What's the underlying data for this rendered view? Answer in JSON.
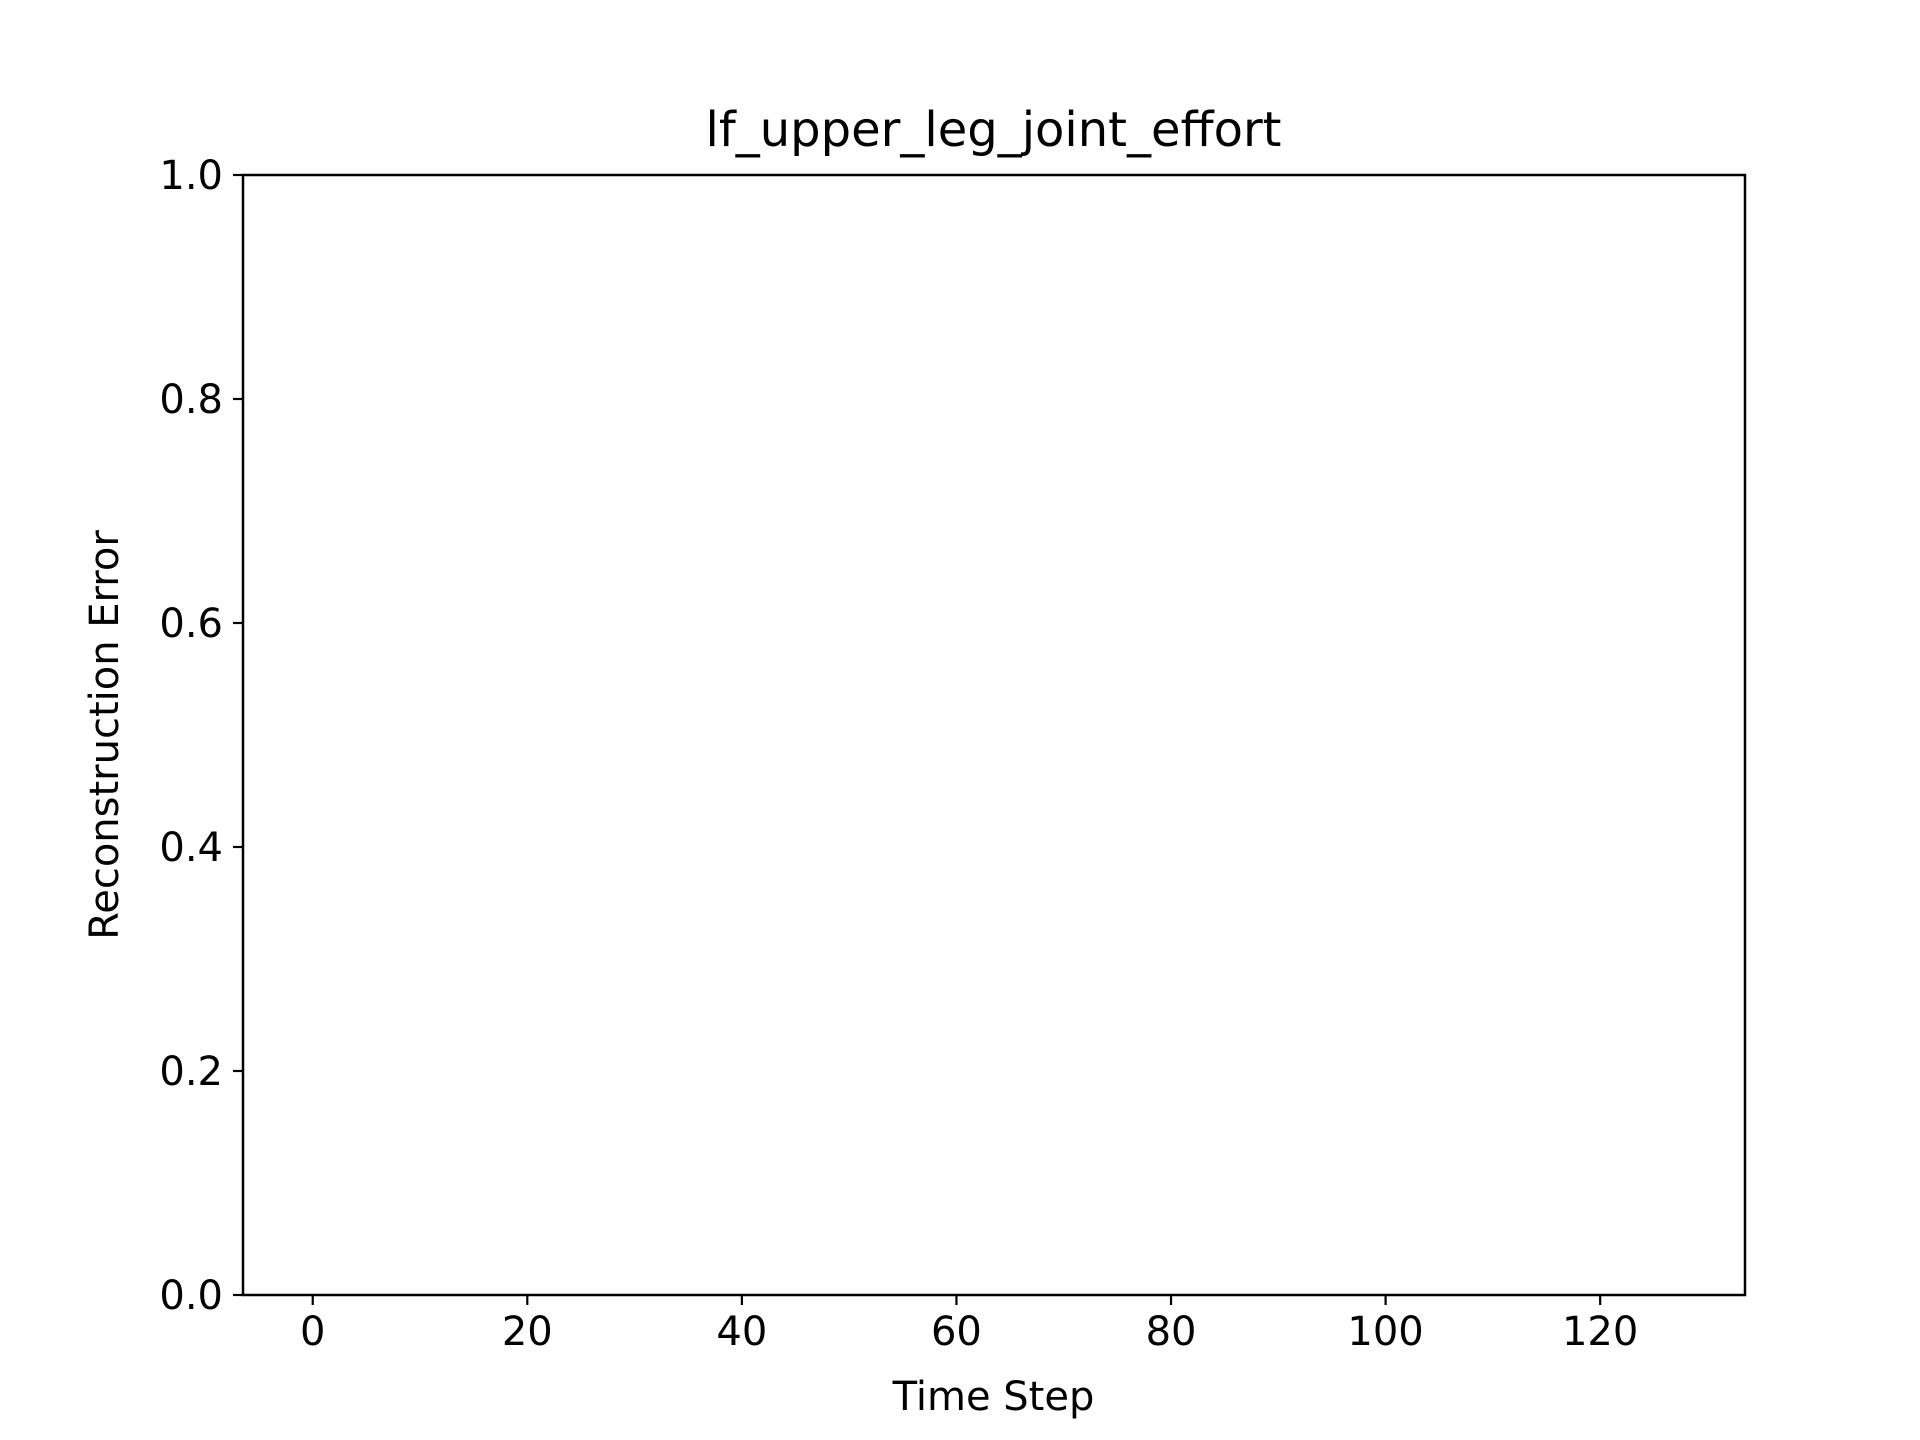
{
  "chart_data": {
    "type": "line",
    "title": "lf_upper_leg_joint_effort",
    "xlabel": "Time Step",
    "ylabel": "Reconstruction Error",
    "xlim": [
      -6.5,
      133.5
    ],
    "ylim": [
      0.0,
      1.0
    ],
    "x_ticks": [
      0,
      20,
      40,
      60,
      80,
      100,
      120
    ],
    "x_tick_labels": [
      "0",
      "20",
      "40",
      "60",
      "80",
      "100",
      "120"
    ],
    "y_ticks": [
      0.0,
      0.2,
      0.4,
      0.6,
      0.8,
      1.0
    ],
    "y_tick_labels": [
      "0.0",
      "0.2",
      "0.4",
      "0.6",
      "0.8",
      "1.0"
    ],
    "grid": false,
    "series": []
  }
}
